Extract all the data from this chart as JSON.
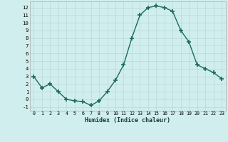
{
  "x": [
    0,
    1,
    2,
    3,
    4,
    5,
    6,
    7,
    8,
    9,
    10,
    11,
    12,
    13,
    14,
    15,
    16,
    17,
    18,
    19,
    20,
    21,
    22,
    23
  ],
  "y": [
    3,
    1.5,
    2,
    1,
    0,
    -0.2,
    -0.3,
    -0.8,
    -0.2,
    1,
    2.5,
    4.5,
    8,
    11,
    12,
    12.2,
    12,
    11.5,
    9,
    7.5,
    4.5,
    4,
    3.5,
    2.7
  ],
  "line_color": "#1a6b5a",
  "marker": "+",
  "marker_size": 4,
  "bg_color": "#d0eeee",
  "grid_color": "#b8d8d8",
  "xlabel": "Humidex (Indice chaleur)",
  "xlim": [
    -0.5,
    23.5
  ],
  "ylim": [
    -1.5,
    12.8
  ],
  "yticks": [
    -1,
    0,
    1,
    2,
    3,
    4,
    5,
    6,
    7,
    8,
    9,
    10,
    11,
    12
  ],
  "xticks": [
    0,
    1,
    2,
    3,
    4,
    5,
    6,
    7,
    8,
    9,
    10,
    11,
    12,
    13,
    14,
    15,
    16,
    17,
    18,
    19,
    20,
    21,
    22,
    23
  ]
}
